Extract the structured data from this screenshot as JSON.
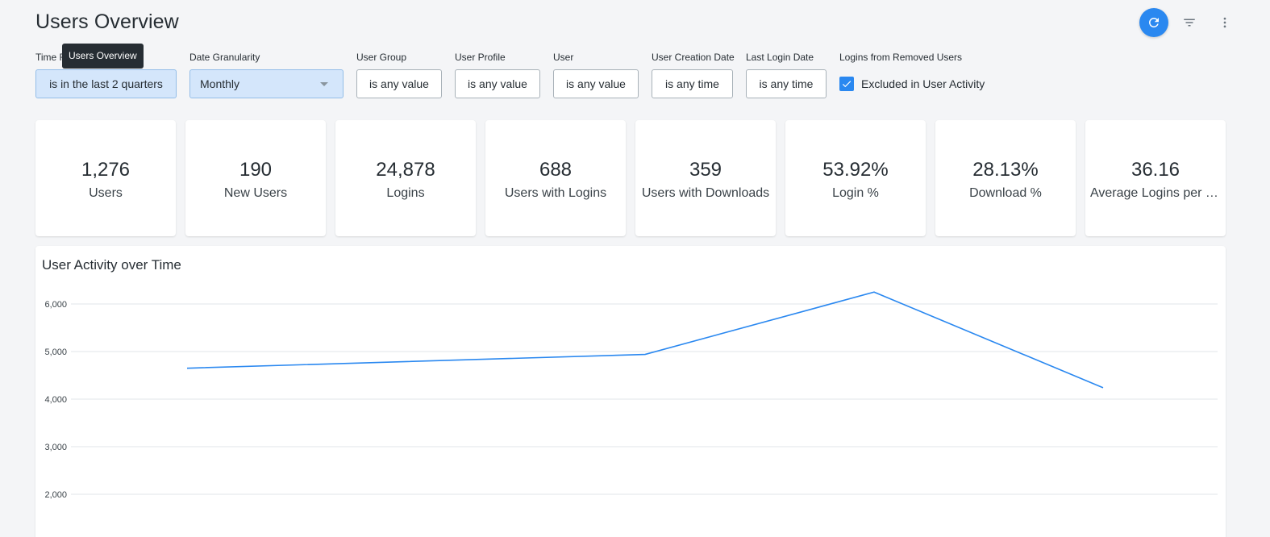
{
  "header": {
    "title": "Users Overview",
    "actions": [
      {
        "name": "refresh",
        "icon": "refresh-icon"
      },
      {
        "name": "filter",
        "icon": "filter-icon"
      },
      {
        "name": "more",
        "icon": "more-vert-icon"
      }
    ]
  },
  "tooltip": {
    "text": "Users Overview"
  },
  "filters": {
    "time_range": {
      "label": "Time R",
      "value": "is in the last 2 quarters"
    },
    "date_granularity": {
      "label": "Date Granularity",
      "value": "Monthly"
    },
    "user_group": {
      "label": "User Group",
      "value": "is any value"
    },
    "user_profile": {
      "label": "User Profile",
      "value": "is any value"
    },
    "user": {
      "label": "User",
      "value": "is any value"
    },
    "user_creation_date": {
      "label": "User Creation Date",
      "value": "is any time"
    },
    "last_login_date": {
      "label": "Last Login Date",
      "value": "is any time"
    },
    "removed_users": {
      "label": "Logins from Removed Users",
      "checkbox_label": "Excluded in User Activity",
      "checked": true
    }
  },
  "kpis": [
    {
      "value": "1,276",
      "label": "Users"
    },
    {
      "value": "190",
      "label": "New Users"
    },
    {
      "value": "24,878",
      "label": "Logins"
    },
    {
      "value": "688",
      "label": "Users with Logins"
    },
    {
      "value": "359",
      "label": "Users with Downloads"
    },
    {
      "value": "53.92%",
      "label": "Login %"
    },
    {
      "value": "28.13%",
      "label": "Download %"
    },
    {
      "value": "36.16",
      "label": "Average Logins per User"
    }
  ],
  "colors": {
    "accent": "#2a88f0",
    "line": "#2a88f0",
    "grid": "#e2e5e8"
  },
  "chart_data": {
    "type": "line",
    "title": "User Activity over Time",
    "y_ticks": [
      2000,
      3000,
      4000,
      5000,
      6000
    ],
    "y_tick_labels": [
      "2,000",
      "3,000",
      "4,000",
      "5,000",
      "6,000"
    ],
    "ylim": [
      2000,
      6000
    ],
    "grid": true,
    "series": [
      {
        "values": [
          4650,
          4940,
          6250,
          4240
        ]
      }
    ]
  }
}
